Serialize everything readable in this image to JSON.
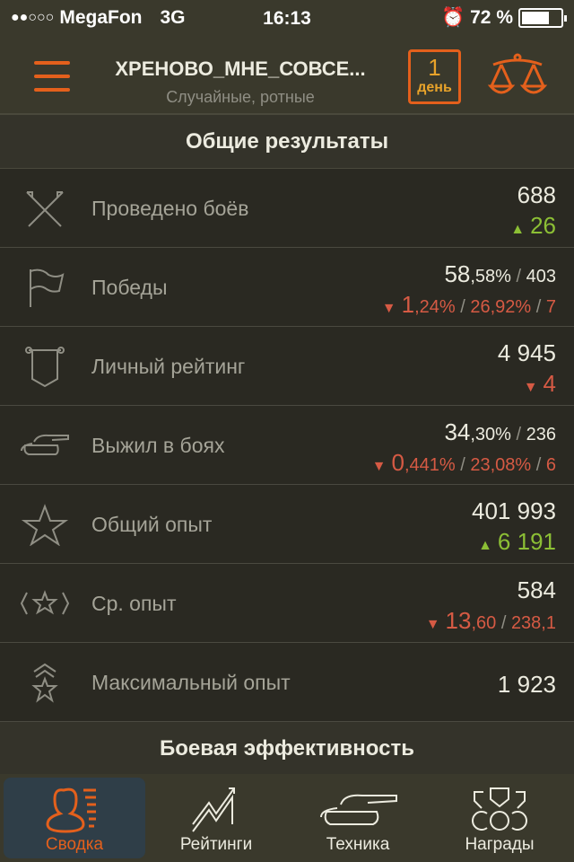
{
  "status": {
    "signal": "●●○○○",
    "carrier": "MegaFon",
    "network": "3G",
    "time": "16:13",
    "alarm_icon": "alarm-clock-icon",
    "battery": "72 %",
    "battery_level": 0.72
  },
  "header": {
    "title": "ХРЕНОВО_МНЕ_СОВСЕ...",
    "subtitle": "Случайные, ротные",
    "period_number": "1",
    "period_unit": "день"
  },
  "colors": {
    "accent": "#e4601c",
    "up": "#8cbf35",
    "down": "#d65a44"
  },
  "sections": {
    "general": "Общие результаты",
    "efficiency": "Боевая эффективность"
  },
  "rows": [
    {
      "icon": "crossed-swords-icon",
      "label": "Проведено боёв",
      "line1": [
        {
          "t": "688",
          "c": "main"
        }
      ],
      "trend": "up",
      "line2": [
        {
          "t": "26",
          "c": "main"
        }
      ]
    },
    {
      "icon": "flag-icon",
      "label": "Победы",
      "line1": [
        {
          "t": "58",
          "c": "main"
        },
        {
          "t": ",58%",
          "c": "small"
        },
        {
          "t": " / ",
          "c": "sep"
        },
        {
          "t": "403",
          "c": "small"
        }
      ],
      "trend": "down",
      "line2": [
        {
          "t": "1",
          "c": "main"
        },
        {
          "t": ",24%",
          "c": "small"
        },
        {
          "t": " / ",
          "c": "sep"
        },
        {
          "t": "26,92%",
          "c": "small"
        },
        {
          "t": " / ",
          "c": "sep"
        },
        {
          "t": "7",
          "c": "small"
        }
      ]
    },
    {
      "icon": "shield-banner-icon",
      "label": "Личный рейтинг",
      "line1": [
        {
          "t": "4 945",
          "c": "main"
        }
      ],
      "trend": "down",
      "line2": [
        {
          "t": "4",
          "c": "main"
        }
      ]
    },
    {
      "icon": "tank-icon",
      "label": "Выжил в боях",
      "line1": [
        {
          "t": "34",
          "c": "main"
        },
        {
          "t": ",30%",
          "c": "small"
        },
        {
          "t": " / ",
          "c": "sep"
        },
        {
          "t": "236",
          "c": "small"
        }
      ],
      "trend": "down",
      "line2": [
        {
          "t": "0",
          "c": "main"
        },
        {
          "t": ",441%",
          "c": "small"
        },
        {
          "t": " / ",
          "c": "sep"
        },
        {
          "t": "23,08%",
          "c": "small"
        },
        {
          "t": " / ",
          "c": "sep"
        },
        {
          "t": "6",
          "c": "small"
        }
      ]
    },
    {
      "icon": "star-icon",
      "label": "Общий опыт",
      "line1": [
        {
          "t": "401 993",
          "c": "main"
        }
      ],
      "trend": "up",
      "line2": [
        {
          "t": "6 191",
          "c": "main"
        }
      ]
    },
    {
      "icon": "bracketed-star-icon",
      "label": "Ср. опыт",
      "line1": [
        {
          "t": "584",
          "c": "main"
        }
      ],
      "trend": "down",
      "line2": [
        {
          "t": "13",
          "c": "main"
        },
        {
          "t": ",60",
          "c": "small"
        },
        {
          "t": " / ",
          "c": "sep"
        },
        {
          "t": "238,1",
          "c": "small"
        }
      ]
    },
    {
      "icon": "star-chevrons-icon",
      "label": "Максимальный опыт",
      "line1": [
        {
          "t": "1 923",
          "c": "main"
        }
      ],
      "trend": null,
      "line2": []
    }
  ],
  "tabs": [
    {
      "label": "Сводка",
      "icon": "summary-person-icon",
      "active": true
    },
    {
      "label": "Рейтинги",
      "icon": "chart-trend-icon",
      "active": false
    },
    {
      "label": "Техника",
      "icon": "tank-icon",
      "active": false
    },
    {
      "label": "Награды",
      "icon": "medals-icon",
      "active": false
    }
  ]
}
